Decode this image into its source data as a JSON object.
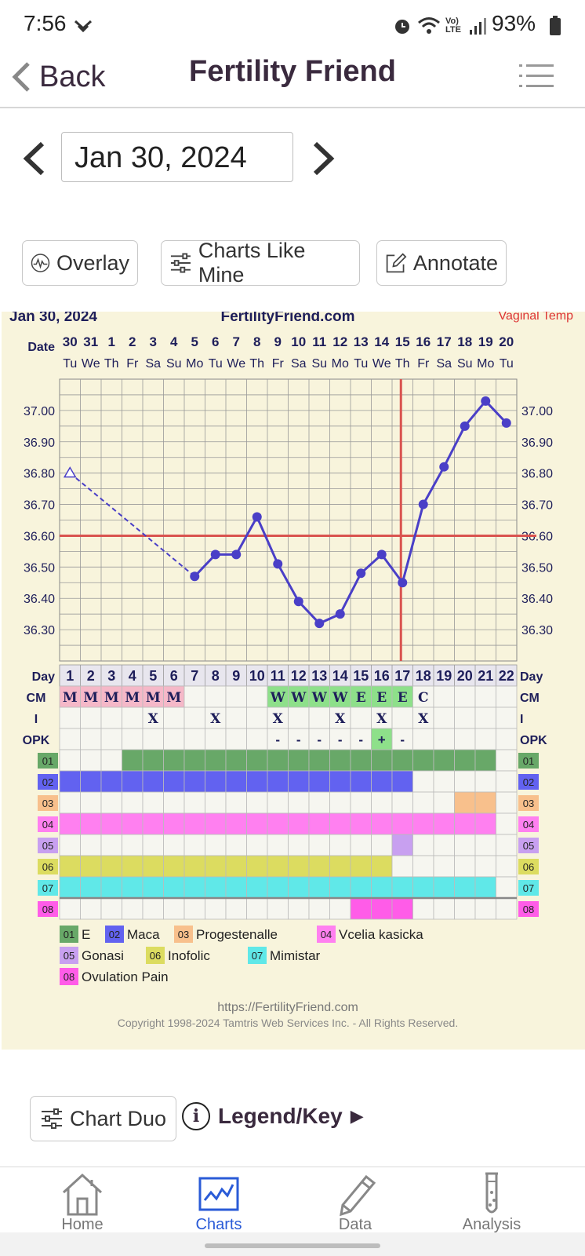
{
  "status_bar": {
    "time": "7:56",
    "battery": "93%",
    "network": "Vo) LTE"
  },
  "header": {
    "back_label": "Back",
    "title": "Fertility Friend"
  },
  "date_nav": {
    "date": "Jan 30, 2024"
  },
  "actions": {
    "overlay": "Overlay",
    "charts_like_mine": "Charts Like Mine",
    "annotate": "Annotate"
  },
  "chart": {
    "date_label": "Jan 30, 2024",
    "site": "FertilityFriend.com",
    "temp_method": "Vaginal Temp",
    "date_row_label": "Date",
    "dates": [
      "30",
      "31",
      "1",
      "2",
      "3",
      "4",
      "5",
      "6",
      "7",
      "8",
      "9",
      "10",
      "11",
      "12",
      "13",
      "14",
      "15",
      "16",
      "17",
      "18",
      "19",
      "20"
    ],
    "weekdays": [
      "Tu",
      "We",
      "Th",
      "Fr",
      "Sa",
      "Su",
      "Mo",
      "Tu",
      "We",
      "Th",
      "Fr",
      "Sa",
      "Su",
      "Mo",
      "Tu",
      "We",
      "Th",
      "Fr",
      "Sa",
      "Su",
      "Mo",
      "Tu"
    ],
    "y_ticks": [
      "37.00",
      "36.90",
      "36.80",
      "36.70",
      "36.60",
      "36.50",
      "36.40",
      "36.30"
    ],
    "coverline": 36.6,
    "ovulation_day": 17,
    "day_row_label": "Day",
    "cm_label": "CM",
    "i_label": "I",
    "opk_label": "OPK",
    "cm": [
      "M",
      "M",
      "M",
      "M",
      "M",
      "M",
      "",
      "",
      "",
      "",
      "W",
      "W",
      "W",
      "W",
      "E",
      "E",
      "E",
      "C",
      "",
      "",
      "",
      ""
    ],
    "intercourse": [
      "",
      "",
      "",
      "",
      "X",
      "",
      "",
      "X",
      "",
      "",
      "X",
      "",
      "",
      "X",
      "",
      "X",
      "",
      "X",
      "",
      "",
      "",
      ""
    ],
    "opk": [
      "",
      "",
      "",
      "",
      "",
      "",
      "",
      "",
      "",
      "",
      "-",
      "-",
      "-",
      "-",
      "-",
      "+",
      "-",
      "",
      "",
      "",
      "",
      ""
    ],
    "supplement_codes": [
      "01",
      "02",
      "03",
      "04",
      "05",
      "06",
      "07",
      "08"
    ],
    "legend": [
      {
        "code": "01",
        "name": "E",
        "color": "#68a868"
      },
      {
        "code": "02",
        "name": "Maca",
        "color": "#6262f0"
      },
      {
        "code": "03",
        "name": "Progestenalle",
        "color": "#f8c08c"
      },
      {
        "code": "04",
        "name": "Vcelia kasicka",
        "color": "#ff80f0"
      },
      {
        "code": "05",
        "name": "Gonasi",
        "color": "#c8a0f0"
      },
      {
        "code": "06",
        "name": "Inofolic",
        "color": "#dcdc60"
      },
      {
        "code": "07",
        "name": "Mimistar",
        "color": "#60e8e8"
      },
      {
        "code": "08",
        "name": "Ovulation Pain",
        "color": "#ff5ce8"
      }
    ],
    "url": "https://FertilityFriend.com",
    "copyright": "Copyright 1998-2024 Tamtris Web Services Inc. - All Rights Reserved."
  },
  "chart_data": {
    "type": "line",
    "x": [
      1,
      7,
      8,
      9,
      10,
      11,
      12,
      13,
      14,
      15,
      16,
      17,
      18,
      19,
      20,
      21,
      22
    ],
    "series": [
      {
        "values": [
          36.8,
          36.47,
          36.54,
          36.54,
          36.66,
          36.51,
          36.39,
          36.32,
          36.35,
          36.48,
          36.54,
          36.45,
          36.7,
          36.82,
          36.95,
          37.03,
          36.96
        ]
      }
    ],
    "ylim": [
      36.2,
      37.1
    ],
    "xlabel": "Day",
    "ylabel": "",
    "first_point_open": true,
    "coverline": 36.6,
    "ovulation_day": 17,
    "supplement_days": {
      "01": [
        4,
        21
      ],
      "02": [
        1,
        17
      ],
      "03": [
        20,
        21
      ],
      "04": [
        1,
        21
      ],
      "05": [
        17,
        17
      ],
      "06": [
        1,
        16
      ],
      "07": [
        1,
        21
      ],
      "08": [
        15,
        17
      ]
    },
    "grid": true,
    "legend": "bottom"
  },
  "bottom": {
    "chart_duo": "Chart Duo",
    "legend_key": "Legend/Key",
    "legend_info_icon": "i",
    "legend_arrow": "▶"
  },
  "tabs": [
    {
      "label": "Home",
      "icon": "home-icon"
    },
    {
      "label": "Charts",
      "icon": "chart-icon"
    },
    {
      "label": "Data",
      "icon": "pencil-icon"
    },
    {
      "label": "Analysis",
      "icon": "test-tube-icon"
    }
  ]
}
